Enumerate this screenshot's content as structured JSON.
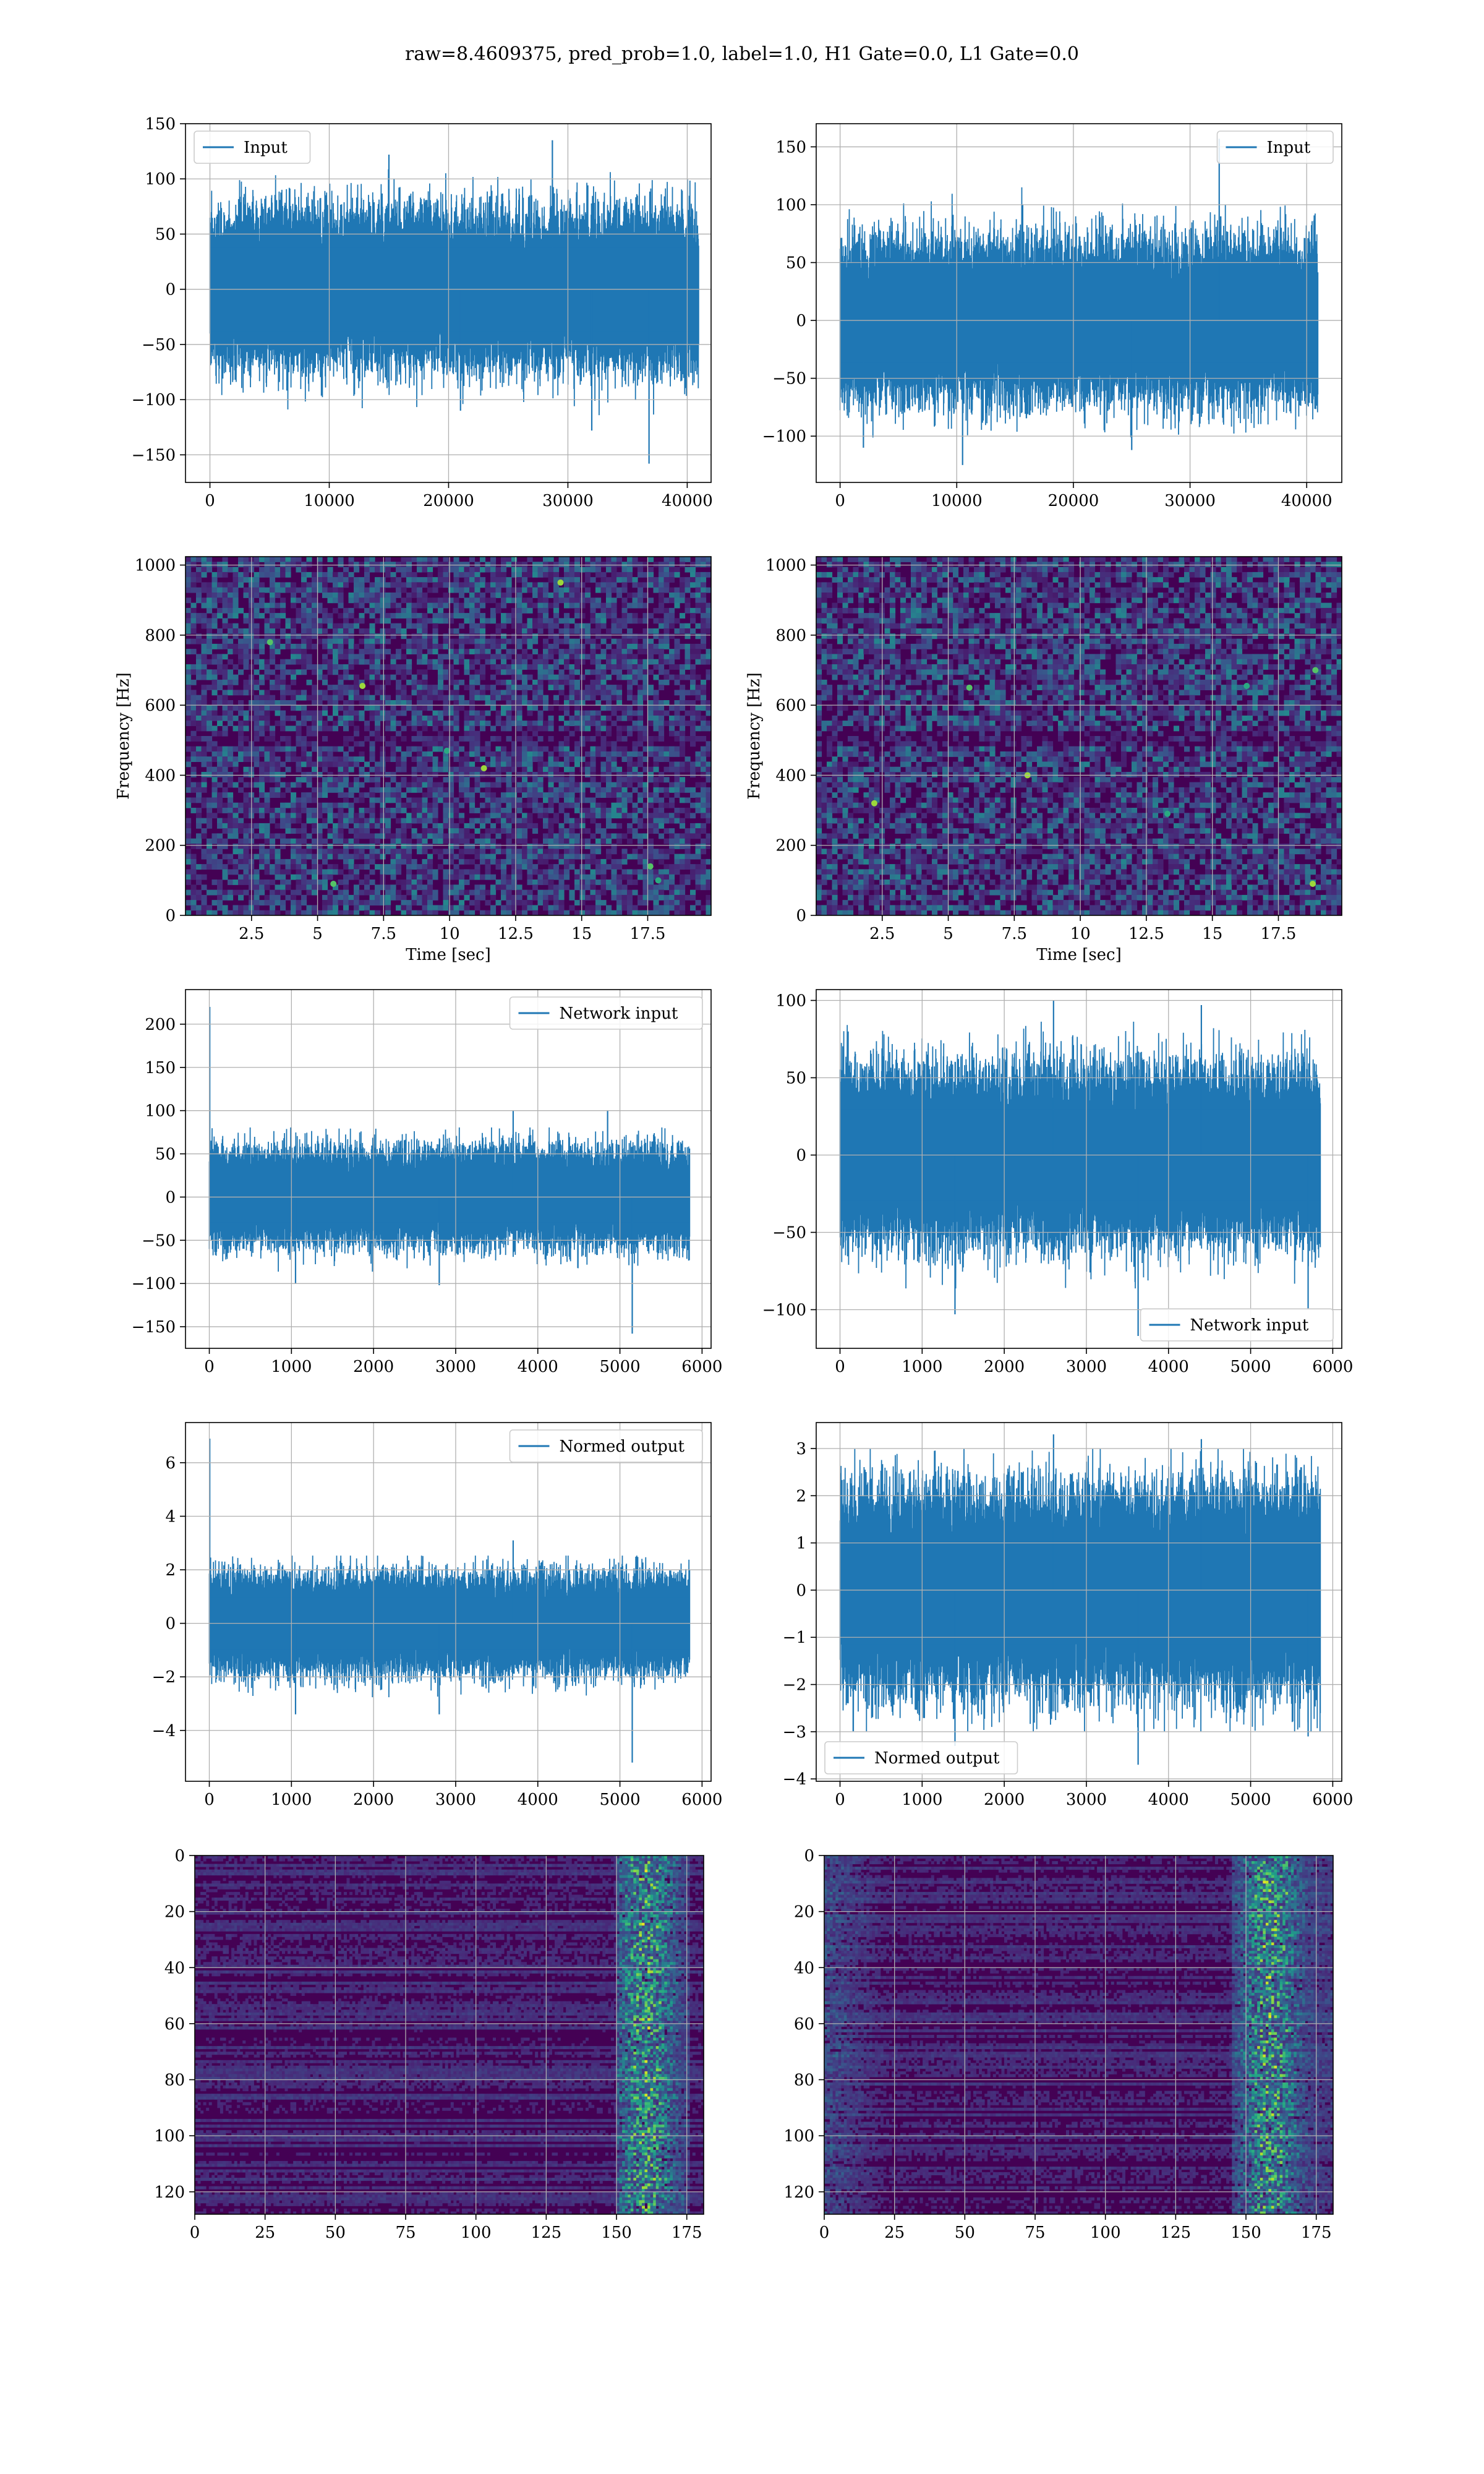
{
  "suptitle": "raw=8.4609375, pred_prob=1.0, label=1.0, H1 Gate=0.0, L1 Gate=0.0",
  "colors": {
    "series": "#1f77b4",
    "grid": "#b0b0b0",
    "viridis_low": "#440154",
    "viridis_mid": "#21918c",
    "viridis_high": "#fde725"
  },
  "chart_data": [
    {
      "id": "h1-input",
      "type": "line",
      "legend": [
        "Input"
      ],
      "legend_loc": "upper left",
      "grid": true,
      "xlim": [
        -2048,
        42000
      ],
      "ylim": [
        -175,
        150
      ],
      "xticks": [
        0,
        10000,
        20000,
        30000,
        40000
      ],
      "yticks": [
        -150,
        -100,
        -50,
        0,
        50,
        100,
        150
      ],
      "signal": {
        "n": 40960,
        "std": 28,
        "typical_max": 100,
        "typical_min": -100,
        "spikes": [
          [
            28700,
            135
          ],
          [
            36800,
            -158
          ],
          [
            15000,
            122
          ],
          [
            21000,
            -110
          ],
          [
            32000,
            -128
          ]
        ]
      }
    },
    {
      "id": "l1-input",
      "type": "line",
      "legend": [
        "Input"
      ],
      "legend_loc": "upper right",
      "grid": true,
      "xlim": [
        -2048,
        43008
      ],
      "ylim": [
        -140,
        170
      ],
      "xticks": [
        0,
        10000,
        20000,
        30000,
        40000
      ],
      "yticks": [
        -100,
        -50,
        0,
        50,
        100,
        150
      ],
      "signal": {
        "n": 40960,
        "std": 27,
        "typical_max": 100,
        "typical_min": -100,
        "spikes": [
          [
            32500,
            157
          ],
          [
            10500,
            -125
          ],
          [
            25000,
            -112
          ],
          [
            2000,
            -110
          ]
        ]
      }
    },
    {
      "id": "h1-spectrogram",
      "type": "heatmap",
      "xlabel": "Time [sec]",
      "ylabel": "Frequency [Hz]",
      "grid": true,
      "xlim": [
        0,
        19.9
      ],
      "ylim": [
        0,
        1024
      ],
      "xticks": [
        2.5,
        5.0,
        7.5,
        10.0,
        12.5,
        15.0,
        17.5
      ],
      "yticks": [
        0,
        200,
        400,
        600,
        800,
        1000
      ],
      "hot_spots": [
        [
          6.7,
          655
        ],
        [
          3.2,
          780
        ],
        [
          9.9,
          470
        ],
        [
          11.3,
          420
        ],
        [
          17.6,
          140
        ],
        [
          17.9,
          100
        ],
        [
          14.2,
          950
        ],
        [
          5.6,
          90
        ]
      ]
    },
    {
      "id": "l1-spectrogram",
      "type": "heatmap",
      "xlabel": "Time [sec]",
      "ylabel": "Frequency [Hz]",
      "grid": true,
      "xlim": [
        0,
        19.9
      ],
      "ylim": [
        0,
        1024
      ],
      "xticks": [
        2.5,
        5.0,
        7.5,
        10.0,
        12.5,
        15.0,
        17.5
      ],
      "yticks": [
        0,
        200,
        400,
        600,
        800,
        1000
      ],
      "hot_spots": [
        [
          2.2,
          320
        ],
        [
          5.8,
          650
        ],
        [
          16.3,
          655
        ],
        [
          18.8,
          90
        ],
        [
          18.9,
          700
        ],
        [
          13.3,
          290
        ],
        [
          8.0,
          400
        ]
      ]
    },
    {
      "id": "h1-network-input",
      "type": "line",
      "legend": [
        "Network input"
      ],
      "legend_loc": "upper right",
      "grid": true,
      "xlim": [
        -290,
        6110
      ],
      "ylim": [
        -175,
        240
      ],
      "xticks": [
        0,
        1000,
        2000,
        3000,
        4000,
        5000,
        6000
      ],
      "yticks": [
        -150,
        -100,
        -50,
        0,
        50,
        100,
        150,
        200
      ],
      "signal": {
        "n": 5850,
        "std": 22,
        "typical_max": 70,
        "typical_min": -75,
        "spikes": [
          [
            5,
            220
          ],
          [
            5150,
            -158
          ],
          [
            1050,
            -100
          ],
          [
            2800,
            -102
          ],
          [
            3700,
            100
          ],
          [
            4850,
            100
          ]
        ]
      }
    },
    {
      "id": "l1-network-input",
      "type": "line",
      "legend": [
        "Network input"
      ],
      "legend_loc": "lower right",
      "grid": true,
      "xlim": [
        -290,
        6110
      ],
      "ylim": [
        -125,
        107
      ],
      "xticks": [
        0,
        1000,
        2000,
        3000,
        4000,
        5000,
        6000
      ],
      "yticks": [
        -100,
        -50,
        0,
        50,
        100
      ],
      "signal": {
        "n": 5850,
        "std": 22,
        "typical_max": 75,
        "typical_min": -75,
        "spikes": [
          [
            3630,
            -117
          ],
          [
            1400,
            -103
          ],
          [
            5700,
            -100
          ],
          [
            2600,
            100
          ],
          [
            4400,
            97
          ]
        ]
      }
    },
    {
      "id": "h1-normed-output",
      "type": "line",
      "legend": [
        "Normed output"
      ],
      "legend_loc": "upper right",
      "grid": true,
      "xlim": [
        -290,
        6110
      ],
      "ylim": [
        -5.9,
        7.5
      ],
      "xticks": [
        0,
        1000,
        2000,
        3000,
        4000,
        5000,
        6000
      ],
      "yticks": [
        -4,
        -2,
        0,
        2,
        4,
        6
      ],
      "signal": {
        "n": 5850,
        "std": 0.72,
        "typical_max": 2.2,
        "typical_min": -2.4,
        "spikes": [
          [
            5,
            6.9
          ],
          [
            5150,
            -5.2
          ],
          [
            1050,
            -3.4
          ],
          [
            3700,
            3.1
          ],
          [
            2800,
            -3.4
          ]
        ]
      }
    },
    {
      "id": "l1-normed-output",
      "type": "line",
      "legend": [
        "Normed output"
      ],
      "legend_loc": "lower left",
      "grid": true,
      "xlim": [
        -290,
        6110
      ],
      "ylim": [
        -4.05,
        3.55
      ],
      "xticks": [
        0,
        1000,
        2000,
        3000,
        4000,
        5000,
        6000
      ],
      "yticks": [
        -4,
        -3,
        -2,
        -1,
        0,
        1,
        2,
        3
      ],
      "signal": {
        "n": 5850,
        "std": 0.85,
        "typical_max": 2.6,
        "typical_min": -2.6,
        "spikes": [
          [
            3630,
            -3.7
          ],
          [
            1400,
            -3.3
          ],
          [
            5700,
            -3.1
          ],
          [
            2600,
            3.3
          ],
          [
            4400,
            3.2
          ]
        ]
      }
    },
    {
      "id": "h1-feature-map",
      "type": "heatmap",
      "grid": true,
      "xlim": [
        0,
        181
      ],
      "ylim": [
        128,
        0
      ],
      "xticks": [
        0,
        25,
        50,
        75,
        100,
        125,
        150,
        175
      ],
      "yticks": [
        0,
        20,
        40,
        60,
        80,
        100,
        120
      ],
      "bright_band": [
        150,
        175
      ],
      "band_peak": 160
    },
    {
      "id": "l1-feature-map",
      "type": "heatmap",
      "grid": true,
      "xlim": [
        0,
        181
      ],
      "ylim": [
        128,
        0
      ],
      "xticks": [
        0,
        25,
        50,
        75,
        100,
        125,
        150,
        175
      ],
      "yticks": [
        0,
        20,
        40,
        60,
        80,
        100,
        120
      ],
      "bright_band": [
        145,
        181
      ],
      "band_peak": 158
    }
  ]
}
